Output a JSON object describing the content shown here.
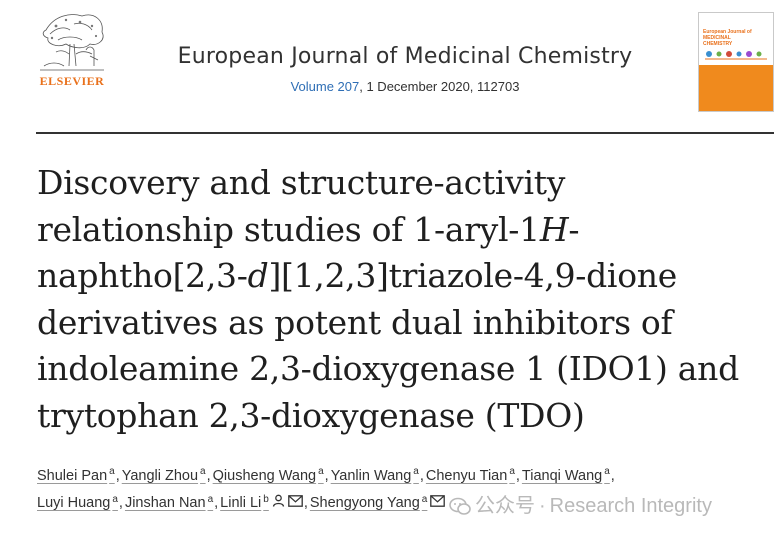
{
  "header": {
    "logo_text": "ELSEVIER",
    "journal_name": "European Journal of Medicinal Chemistry",
    "volume_link": "Volume 207",
    "issue_rest": ", 1 December 2020, 112703"
  },
  "cover": {
    "title_line1": "European Journal of",
    "title_line2": "MEDICINAL",
    "title_line3": "CHEMISTRY"
  },
  "article": {
    "title_lines": [
      [
        "Discovery and structure-activity"
      ],
      [
        "relationship studies of 1-aryl-1",
        "H",
        "-"
      ],
      [
        "naphtho[2,3-",
        "d",
        "][1,2,3]triazole-4,9-dione"
      ],
      [
        "derivatives as potent dual inhibitors of"
      ],
      [
        "indoleamine 2,3-dioxygenase 1 (IDO1) and"
      ],
      [
        "trytophan 2,3-dioxygenase (TDO)"
      ]
    ]
  },
  "authors": [
    {
      "name": "Shulei Pan",
      "aff": "a"
    },
    {
      "name": "Yangli Zhou",
      "aff": "a"
    },
    {
      "name": "Qiusheng Wang",
      "aff": "a"
    },
    {
      "name": "Yanlin Wang",
      "aff": "a"
    },
    {
      "name": "Chenyu Tian",
      "aff": "a"
    },
    {
      "name": "Tianqi Wang",
      "aff": "a"
    },
    {
      "name": "Luyi Huang",
      "aff": "a"
    },
    {
      "name": "Jinshan Nan",
      "aff": "a"
    },
    {
      "name": "Linli Li",
      "aff": "b"
    },
    {
      "name": "Shengyong Yang",
      "aff": "a"
    }
  ],
  "watermark": {
    "account_text": "公众号",
    "separator": "·",
    "brand_text": "Research Integrity"
  }
}
